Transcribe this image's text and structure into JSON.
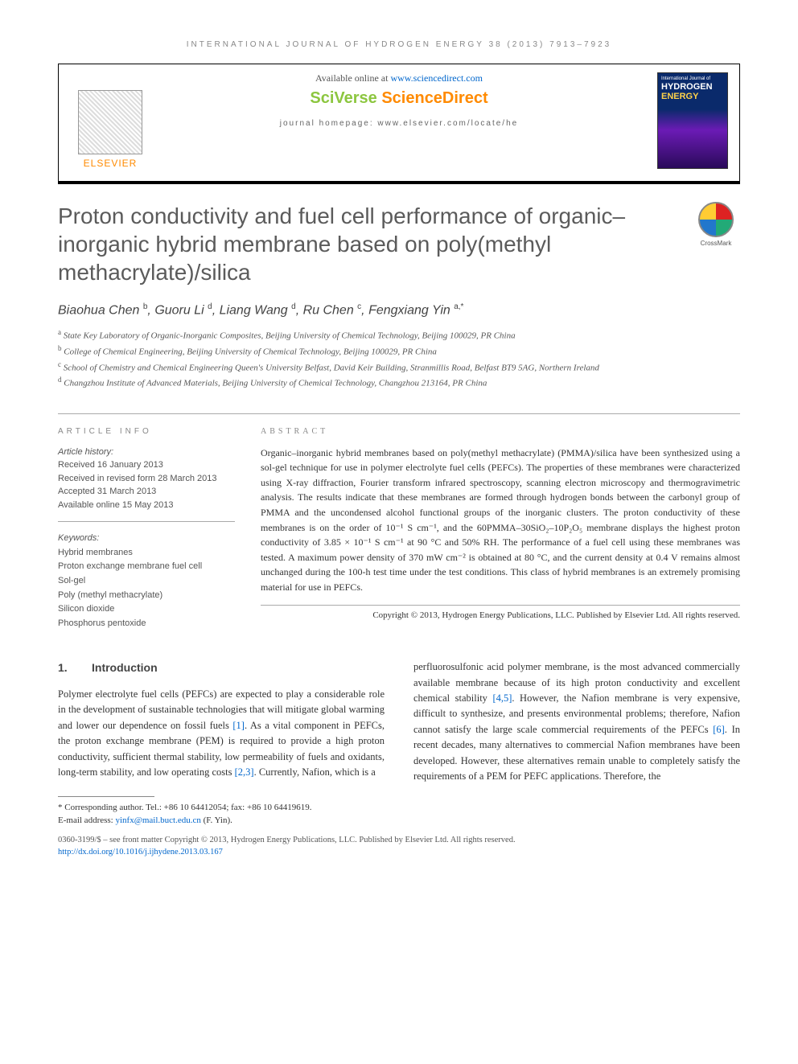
{
  "running_header": "INTERNATIONAL JOURNAL OF HYDROGEN ENERGY 38 (2013) 7913–7923",
  "topbox": {
    "available_prefix": "Available online at ",
    "available_link": "www.sciencedirect.com",
    "sv": "SciVerse ",
    "sd": "ScienceDirect",
    "homepage": "journal homepage: www.elsevier.com/locate/he",
    "elsevier": "ELSEVIER",
    "cover_line1": "International Journal of",
    "cover_line2": "HYDROGEN",
    "cover_line3": "ENERGY"
  },
  "title": "Proton conductivity and fuel cell performance of organic–inorganic hybrid membrane based on poly(methyl methacrylate)/silica",
  "crossmark": "CrossMark",
  "authors_html": "Biaohua Chen <sup>b</sup>, Guoru Li <sup>d</sup>, Liang Wang <sup>d</sup>, Ru Chen <sup>c</sup>, Fengxiang Yin <sup>a,*</sup>",
  "affiliations": [
    "a State Key Laboratory of Organic-Inorganic Composites, Beijing University of Chemical Technology, Beijing 100029, PR China",
    "b College of Chemical Engineering, Beijing University of Chemical Technology, Beijing 100029, PR China",
    "c School of Chemistry and Chemical Engineering Queen's University Belfast, David Keir Building, Stranmillis Road, Belfast BT9 5AG, Northern Ireland",
    "d Changzhou Institute of Advanced Materials, Beijing University of Chemical Technology, Changzhou 213164, PR China"
  ],
  "info_head": "ARTICLE INFO",
  "abs_head": "ABSTRACT",
  "history": {
    "label": "Article history:",
    "received": "Received 16 January 2013",
    "revised": "Received in revised form 28 March 2013",
    "accepted": "Accepted 31 March 2013",
    "online": "Available online 15 May 2013"
  },
  "keywords": {
    "label": "Keywords:",
    "items": [
      "Hybrid membranes",
      "Proton exchange membrane fuel cell",
      "Sol-gel",
      "Poly (methyl methacrylate)",
      "Silicon dioxide",
      "Phosphorus pentoxide"
    ]
  },
  "abstract": "Organic–inorganic hybrid membranes based on poly(methyl methacrylate) (PMMA)/silica have been synthesized using a sol-gel technique for use in polymer electrolyte fuel cells (PEFCs). The properties of these membranes were characterized using X-ray diffraction, Fourier transform infrared spectroscopy, scanning electron microscopy and thermogravimetric analysis. The results indicate that these membranes are formed through hydrogen bonds between the carbonyl group of PMMA and the uncondensed alcohol functional groups of the inorganic clusters. The proton conductivity of these membranes is on the order of 10⁻¹ S cm⁻¹, and the 60PMMA–30SiO₂–10P₂O₅ membrane displays the highest proton conductivity of 3.85 × 10⁻¹ S cm⁻¹ at 90 °C and 50% RH. The performance of a fuel cell using these membranes was tested. A maximum power density of 370 mW cm⁻² is obtained at 80 °C, and the current density at 0.4 V remains almost unchanged during the 100-h test time under the test conditions. This class of hybrid membranes is an extremely promising material for use in PEFCs.",
  "copyright": "Copyright © 2013, Hydrogen Energy Publications, LLC. Published by Elsevier Ltd. All rights reserved.",
  "intro": {
    "num": "1.",
    "heading": "Introduction",
    "col1": "Polymer electrolyte fuel cells (PEFCs) are expected to play a considerable role in the development of sustainable technologies that will mitigate global warming and lower our dependence on fossil fuels [1]. As a vital component in PEFCs, the proton exchange membrane (PEM) is required to provide a high proton conductivity, sufficient thermal stability, low permeability of fuels and oxidants, long-term stability, and low operating costs [2,3]. Currently, Nafion, which is a",
    "col2": "perfluorosulfonic acid polymer membrane, is the most advanced commercially available membrane because of its high proton conductivity and excellent chemical stability [4,5]. However, the Nafion membrane is very expensive, difficult to synthesize, and presents environmental problems; therefore, Nafion cannot satisfy the large scale commercial requirements of the PEFCs [6]. In recent decades, many alternatives to commercial Nafion membranes have been developed. However, these alternatives remain unable to completely satisfy the requirements of a PEM for PEFC applications. Therefore, the",
    "refs": {
      "r1": "[1]",
      "r23": "[2,3]",
      "r45": "[4,5]",
      "r6": "[6]"
    }
  },
  "footnotes": {
    "corr": "* Corresponding author. Tel.: +86 10 64412054; fax: +86 10 64419619.",
    "email_label": "E-mail address: ",
    "email": "yinfx@mail.buct.edu.cn",
    "email_suffix": " (F. Yin)."
  },
  "bottom": {
    "line1": "0360-3199/$ – see front matter Copyright © 2013, Hydrogen Energy Publications, LLC. Published by Elsevier Ltd. All rights reserved.",
    "doi": "http://dx.doi.org/10.1016/j.ijhydene.2013.03.167"
  },
  "colors": {
    "orange": "#ff8a00",
    "green": "#8cc63f",
    "link": "#0066cc",
    "title_gray": "#5b5b5b"
  }
}
